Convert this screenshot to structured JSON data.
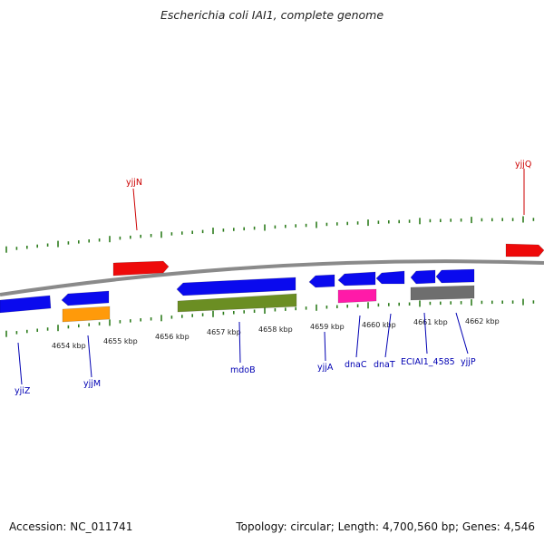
{
  "title": "Escherichia coli IAI1, complete genome",
  "footer": {
    "accession": "Accession: NC_011741",
    "summary": "Topology: circular; Length: 4,700,560 bp; Genes: 4,546"
  },
  "colors": {
    "backbone": "#8a8a8a",
    "tick": "#2e7d1e",
    "forward_label": "#cc0000",
    "reverse_label": "#0000b3",
    "gene_blue": "#0a0aee",
    "gene_red": "#ee0a0a",
    "gene_orange": "#ff9a0a",
    "gene_green": "#6b8e23",
    "gene_pink": "#ff1aa8",
    "gene_gray": "#6e6e6e"
  },
  "scale_labels": [
    "4654 kbp",
    "4655 kbp",
    "4656 kbp",
    "4657 kbp",
    "4658 kbp",
    "4659 kbp",
    "4660 kbp",
    "4661 kbp",
    "4662 kbp"
  ],
  "gene_labels": {
    "forward": [
      "yjjN",
      "yjjQ"
    ],
    "reverse": [
      "yjiZ",
      "yjjM",
      "mdoB",
      "yjjA",
      "dnaC",
      "dnaT",
      "ECIAI1_4585",
      "yjjP"
    ]
  }
}
